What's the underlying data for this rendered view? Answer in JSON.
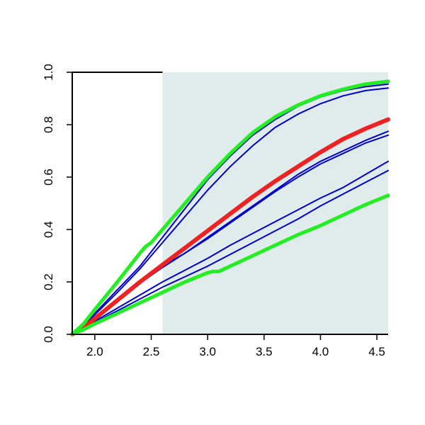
{
  "chart_data": {
    "type": "line",
    "title": "",
    "xlabel": "",
    "ylabel": "",
    "xlim": [
      1.8,
      4.6
    ],
    "ylim": [
      0.0,
      1.0
    ],
    "x_ticks": [
      2.0,
      2.5,
      3.0,
      3.5,
      4.0,
      4.5
    ],
    "y_ticks": [
      0.0,
      0.2,
      0.4,
      0.6,
      0.8,
      1.0
    ],
    "x_tick_labels": [
      "2.0",
      "2.5",
      "3.0",
      "3.5",
      "4.0",
      "4.5"
    ],
    "y_tick_labels": [
      "0.0",
      "0.2",
      "0.4",
      "0.6",
      "0.8",
      "1.0"
    ],
    "grid": false,
    "legend": "none",
    "shaded_region": {
      "x_from": 2.6,
      "x_to": 4.6,
      "color": "#e0ecec"
    },
    "series": [
      {
        "color": "#0000cc",
        "role": "sample",
        "x": [
          1.8,
          1.9,
          2.0,
          2.2,
          2.4,
          2.6,
          2.8,
          3.0,
          3.2,
          3.4,
          3.6,
          3.8,
          4.0,
          4.2,
          4.4,
          4.6
        ],
        "y": [
          0.0,
          0.03,
          0.08,
          0.17,
          0.26,
          0.37,
          0.48,
          0.59,
          0.68,
          0.76,
          0.82,
          0.87,
          0.905,
          0.93,
          0.945,
          0.955
        ]
      },
      {
        "color": "#0000cc",
        "role": "sample",
        "x": [
          1.8,
          1.9,
          2.0,
          2.2,
          2.4,
          2.6,
          2.8,
          3.0,
          3.2,
          3.4,
          3.6,
          3.8,
          4.0,
          4.2,
          4.4,
          4.6
        ],
        "y": [
          0.0,
          0.03,
          0.075,
          0.16,
          0.25,
          0.35,
          0.45,
          0.55,
          0.64,
          0.72,
          0.79,
          0.84,
          0.88,
          0.91,
          0.93,
          0.94
        ]
      },
      {
        "color": "#0000cc",
        "role": "sample",
        "x": [
          1.8,
          1.9,
          2.0,
          2.2,
          2.4,
          2.6,
          2.8,
          3.0,
          3.2,
          3.4,
          3.6,
          3.8,
          4.0,
          4.2,
          4.4,
          4.6
        ],
        "y": [
          0.0,
          0.025,
          0.06,
          0.13,
          0.2,
          0.26,
          0.31,
          0.37,
          0.43,
          0.49,
          0.55,
          0.61,
          0.66,
          0.7,
          0.74,
          0.775
        ]
      },
      {
        "color": "#0000cc",
        "role": "sample",
        "x": [
          1.8,
          1.9,
          2.0,
          2.2,
          2.4,
          2.6,
          2.8,
          3.0,
          3.2,
          3.4,
          3.6,
          3.8,
          4.0,
          4.2,
          4.4,
          4.6
        ],
        "y": [
          0.0,
          0.025,
          0.06,
          0.13,
          0.195,
          0.255,
          0.31,
          0.365,
          0.425,
          0.485,
          0.545,
          0.6,
          0.65,
          0.69,
          0.73,
          0.76
        ]
      },
      {
        "color": "#0000cc",
        "role": "sample",
        "x": [
          1.8,
          1.9,
          2.0,
          2.2,
          2.4,
          2.6,
          2.8,
          3.0,
          3.2,
          3.4,
          3.6,
          3.8,
          4.0,
          4.2,
          4.4,
          4.6
        ],
        "y": [
          0.0,
          0.02,
          0.05,
          0.1,
          0.15,
          0.2,
          0.245,
          0.29,
          0.34,
          0.385,
          0.43,
          0.475,
          0.52,
          0.56,
          0.61,
          0.66
        ]
      },
      {
        "color": "#0000cc",
        "role": "sample",
        "x": [
          1.8,
          1.9,
          2.0,
          2.2,
          2.4,
          2.6,
          2.8,
          3.0,
          3.2,
          3.4,
          3.6,
          3.8,
          4.0,
          4.2,
          4.4,
          4.6
        ],
        "y": [
          0.0,
          0.02,
          0.045,
          0.09,
          0.135,
          0.18,
          0.22,
          0.26,
          0.305,
          0.35,
          0.395,
          0.44,
          0.49,
          0.535,
          0.58,
          0.625
        ]
      },
      {
        "color": "#ee2222",
        "role": "mean",
        "x": [
          1.8,
          1.9,
          2.0,
          2.2,
          2.4,
          2.6,
          2.8,
          3.0,
          3.2,
          3.4,
          3.6,
          3.8,
          4.0,
          4.2,
          4.4,
          4.6
        ],
        "y": [
          0.0,
          0.025,
          0.06,
          0.13,
          0.2,
          0.265,
          0.33,
          0.395,
          0.46,
          0.525,
          0.585,
          0.64,
          0.695,
          0.745,
          0.785,
          0.82
        ]
      },
      {
        "color": "#22ee22",
        "role": "upper-bound",
        "x": [
          1.8,
          1.9,
          2.0,
          2.2,
          2.4,
          2.45,
          2.5,
          2.6,
          2.8,
          3.0,
          3.2,
          3.4,
          3.6,
          3.8,
          4.0,
          4.2,
          4.4,
          4.6
        ],
        "y": [
          0.0,
          0.04,
          0.095,
          0.2,
          0.31,
          0.335,
          0.35,
          0.4,
          0.5,
          0.6,
          0.69,
          0.77,
          0.83,
          0.875,
          0.91,
          0.935,
          0.955,
          0.965
        ]
      },
      {
        "color": "#22ee22",
        "role": "lower-bound",
        "x": [
          1.8,
          1.9,
          2.0,
          2.2,
          2.4,
          2.6,
          2.8,
          3.0,
          3.05,
          3.1,
          3.2,
          3.4,
          3.6,
          3.8,
          4.0,
          4.2,
          4.4,
          4.6
        ],
        "y": [
          0.0,
          0.018,
          0.04,
          0.08,
          0.12,
          0.16,
          0.2,
          0.235,
          0.24,
          0.24,
          0.26,
          0.3,
          0.34,
          0.38,
          0.415,
          0.455,
          0.495,
          0.53
        ]
      }
    ]
  }
}
